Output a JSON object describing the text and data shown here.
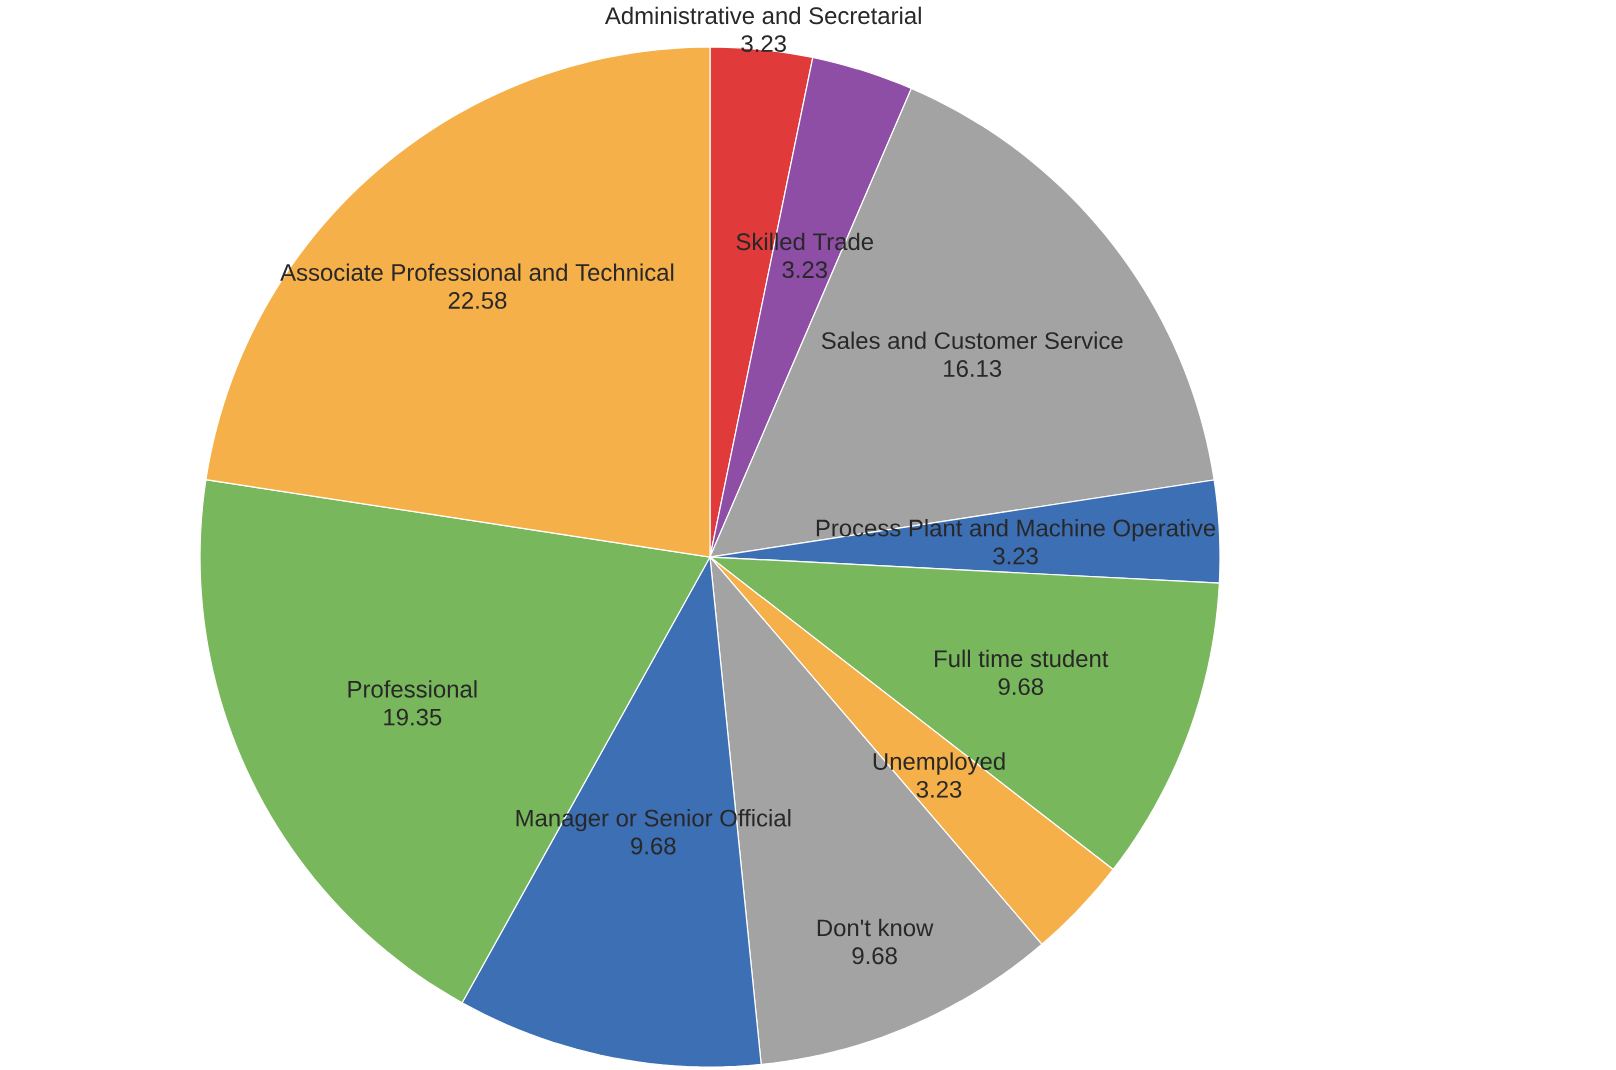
{
  "chart_data": {
    "type": "pie",
    "categories": [
      "Administrative and Secretarial",
      "Skilled Trade",
      "Sales and Customer Service",
      "Process Plant and Machine Operative",
      "Full time student",
      "Unemployed",
      "Don't know",
      "Manager or Senior Official",
      "Professional",
      "Associate Professional and Technical"
    ],
    "values": [
      3.23,
      3.23,
      16.13,
      3.23,
      9.68,
      3.23,
      9.68,
      9.68,
      19.35,
      22.58
    ],
    "colors": [
      "#e03a3a",
      "#8e4ea6",
      "#a3a3a3",
      "#3d6fb5",
      "#78b75c",
      "#f5b04a",
      "#a3a3a3",
      "#3d6fb5",
      "#78b75c",
      "#f5b04a"
    ],
    "data_labels": true
  }
}
